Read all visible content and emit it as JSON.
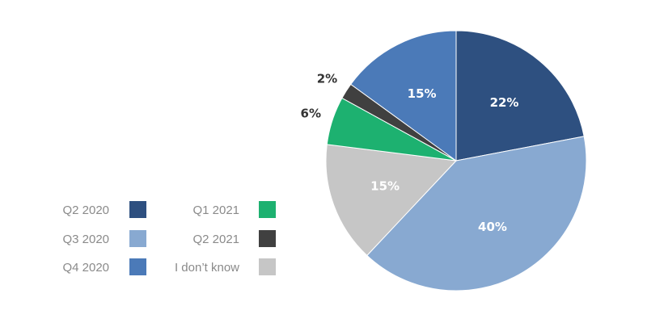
{
  "chart_data": {
    "type": "pie",
    "slices": [
      {
        "label": "Q2 2020",
        "value": 22,
        "display": "22%",
        "color": "#2e5080",
        "label_position": "inside"
      },
      {
        "label": "Q3 2020",
        "value": 40,
        "display": "40%",
        "color": "#88a9d1",
        "label_position": "inside"
      },
      {
        "label": "I don’t know",
        "value": 15,
        "display": "15%",
        "color": "#c6c6c6",
        "label_position": "inside"
      },
      {
        "label": "Q1 2021",
        "value": 6,
        "display": "6%",
        "color": "#1db170",
        "label_position": "outside"
      },
      {
        "label": "Q2 2021",
        "value": 2,
        "display": "2%",
        "color": "#404040",
        "label_position": "outside"
      },
      {
        "label": "Q4 2020",
        "value": 15,
        "display": "15%",
        "color": "#4b7ab8",
        "label_position": "inside"
      }
    ],
    "start_angle": "12 o'clock",
    "direction": "clockwise",
    "legend": {
      "placement": "bottom-left",
      "columns": [
        [
          "Q2 2020",
          "Q3 2020",
          "Q4 2020"
        ],
        [
          "Q1 2021",
          "Q2 2021",
          "I don’t know"
        ]
      ]
    }
  }
}
